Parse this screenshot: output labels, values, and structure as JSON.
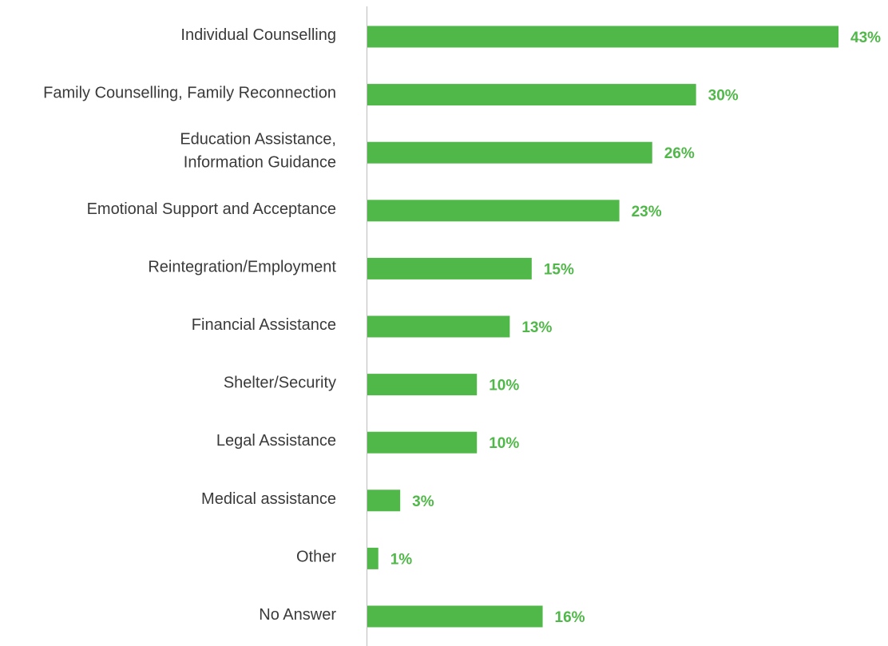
{
  "chart_data": {
    "type": "bar",
    "orientation": "horizontal",
    "title": "",
    "xlabel": "",
    "ylabel": "",
    "categories": [
      [
        "Individual Counselling"
      ],
      [
        "Family Counselling, Family Reconnection"
      ],
      [
        "Education Assistance,",
        "Information Guidance"
      ],
      [
        "Emotional Support and Acceptance"
      ],
      [
        "Reintegration/Employment"
      ],
      [
        "Financial Assistance"
      ],
      [
        "Shelter/Security"
      ],
      [
        "Legal Assistance"
      ],
      [
        "Medical assistance"
      ],
      [
        "Other"
      ],
      [
        "No Answer"
      ]
    ],
    "values": [
      43,
      30,
      26,
      23,
      15,
      13,
      10,
      10,
      3,
      1,
      16
    ],
    "value_labels": [
      "43%",
      "30%",
      "26%",
      "23%",
      "15%",
      "13%",
      "10%",
      "10%",
      "3%",
      "1%",
      "16%"
    ],
    "unit": "%",
    "xlim": [
      0,
      43
    ],
    "grid": false,
    "legend": "none",
    "colors": {
      "bar": "#50b848",
      "value_label": "#50b848",
      "axis": "#bdbdbd",
      "category_label": "#3a3a3a"
    }
  }
}
